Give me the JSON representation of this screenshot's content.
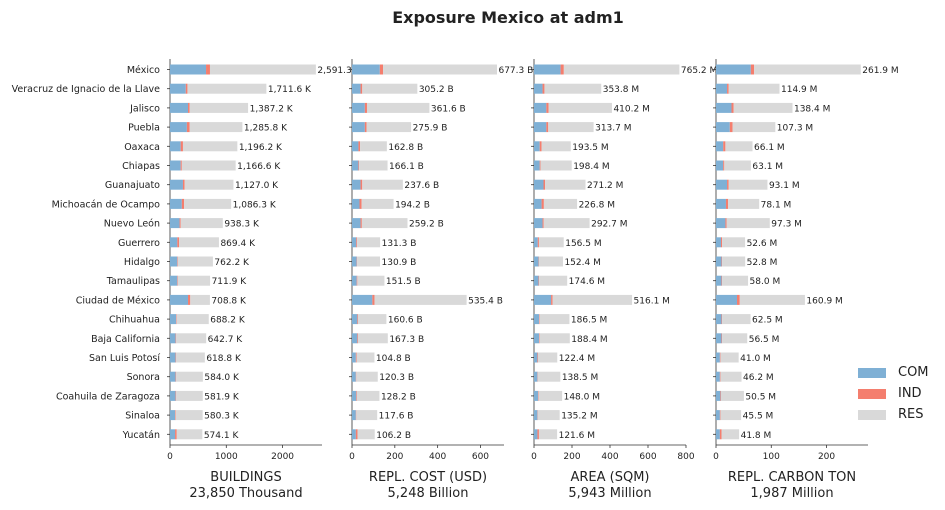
{
  "title": "Exposure Mexico at adm1",
  "colors": {
    "COM": "#7fb0d5",
    "IND": "#f47e6e",
    "RES": "#d9d9d9"
  },
  "legend": [
    {
      "key": "COM",
      "label": "COM"
    },
    {
      "key": "IND",
      "label": "IND"
    },
    {
      "key": "RES",
      "label": "RES"
    }
  ],
  "chart_data": {
    "type": "bar",
    "orientation": "horizontal",
    "stacked": true,
    "categories": [
      "México",
      "Veracruz de Ignacio de la Llave",
      "Jalisco",
      "Puebla",
      "Oaxaca",
      "Chiapas",
      "Guanajuato",
      "Michoacán de Ocampo",
      "Nuevo León",
      "Guerrero",
      "Hidalgo",
      "Tamaulipas",
      "Ciudad de México",
      "Chihuahua",
      "Baja California",
      "San Luis Potosí",
      "Sonora",
      "Coahuila de Zaragoza",
      "Sinaloa",
      "Yucatán"
    ],
    "panels": [
      {
        "xlabel": "BUILDINGS",
        "total_label": "23,850 Thousand",
        "xticks": [
          0,
          1000,
          2000
        ],
        "xlim": [
          0,
          2700
        ],
        "totals": [
          2591.3,
          1711.6,
          1387.2,
          1285.8,
          1196.2,
          1166.6,
          1127.0,
          1086.3,
          938.3,
          869.4,
          762.2,
          711.9,
          708.8,
          688.2,
          642.7,
          618.8,
          584.0,
          581.9,
          580.3,
          574.1
        ],
        "labels": [
          "2,591.3 K",
          "1,711.6 K",
          "1,387.2 K",
          "1,285.8 K",
          "1,196.2 K",
          "1,166.6 K",
          "1,127.0 K",
          "1,086.3 K",
          "938.3 K",
          "869.4 K",
          "762.2 K",
          "711.9 K",
          "708.8 K",
          "688.2 K",
          "642.7 K",
          "618.8 K",
          "584.0 K",
          "581.9 K",
          "580.3 K",
          "574.1 K"
        ],
        "series": [
          {
            "key": "COM",
            "values": [
              640,
              280,
              320,
              300,
              190,
              190,
              230,
              210,
              170,
              130,
              130,
              130,
              320,
              110,
              100,
              100,
              100,
              100,
              90,
              90
            ]
          },
          {
            "key": "IND",
            "values": [
              70,
              30,
              30,
              50,
              40,
              20,
              30,
              40,
              20,
              30,
              10,
              10,
              40,
              10,
              10,
              10,
              10,
              10,
              10,
              30
            ]
          },
          {
            "key": "RES",
            "values": [
              1881.3,
              1401.6,
              1037.2,
              935.8,
              966.2,
              956.6,
              867.0,
              836.3,
              748.3,
              709.4,
              622.2,
              571.9,
              348.8,
              568.2,
              532.7,
              508.8,
              474.0,
              471.9,
              480.3,
              454.1
            ]
          }
        ]
      },
      {
        "xlabel": "REPL. COST (USD)",
        "total_label": "5,248 Billion",
        "xticks": [
          0,
          200,
          400,
          600
        ],
        "xlim": [
          0,
          710
        ],
        "totals": [
          677.3,
          305.2,
          361.6,
          275.9,
          162.8,
          166.1,
          237.6,
          194.2,
          259.2,
          131.3,
          130.9,
          151.5,
          535.4,
          160.6,
          167.3,
          104.8,
          120.3,
          128.2,
          117.6,
          106.2
        ],
        "labels": [
          "677.3 B",
          "305.2 B",
          "361.6 B",
          "275.9 B",
          "162.8 B",
          "166.1 B",
          "237.6 B",
          "194.2 B",
          "259.2 B",
          "131.3 B",
          "130.9 B",
          "151.5 B",
          "535.4 B",
          "160.6 B",
          "167.3 B",
          "104.8 B",
          "120.3 B",
          "128.2 B",
          "117.6 B",
          "106.2 B"
        ],
        "series": [
          {
            "key": "COM",
            "values": [
              130,
              40,
              60,
              60,
              30,
              30,
              40,
              35,
              40,
              20,
              22,
              22,
              95,
              25,
              25,
              18,
              18,
              20,
              18,
              18
            ]
          },
          {
            "key": "IND",
            "values": [
              15,
              8,
              10,
              8,
              8,
              3,
              8,
              10,
              6,
              4,
              2,
              3,
              10,
              3,
              3,
              3,
              2,
              3,
              2,
              8
            ]
          },
          {
            "key": "RES",
            "values": [
              532.3,
              257.2,
              291.6,
              207.9,
              124.8,
              133.1,
              189.6,
              149.2,
              213.2,
              107.3,
              106.9,
              126.5,
              430.4,
              132.6,
              139.3,
              83.8,
              100.3,
              105.2,
              97.6,
              80.2
            ]
          }
        ]
      },
      {
        "xlabel": "AREA (SQM)",
        "total_label": "5,943 Million",
        "xticks": [
          0,
          200,
          400,
          600,
          800
        ],
        "xlim": [
          0,
          800
        ],
        "totals": [
          765.2,
          353.8,
          410.2,
          313.7,
          193.5,
          198.4,
          271.2,
          226.8,
          292.7,
          156.5,
          152.4,
          174.6,
          516.1,
          186.5,
          188.4,
          122.4,
          138.5,
          148.0,
          135.2,
          121.6
        ],
        "labels": [
          "765.2 M",
          "353.8 M",
          "410.2 M",
          "313.7 M",
          "193.5 M",
          "198.4 M",
          "271.2 M",
          "226.8 M",
          "292.7 M",
          "156.5 M",
          "152.4 M",
          "174.6 M",
          "516.1 M",
          "186.5 M",
          "188.4 M",
          "122.4 M",
          "138.5 M",
          "148.0 M",
          "135.2 M",
          "121.6 M"
        ],
        "series": [
          {
            "key": "COM",
            "values": [
              140,
              45,
              65,
              65,
              30,
              30,
              50,
              40,
              45,
              20,
              24,
              24,
              90,
              27,
              27,
              18,
              18,
              22,
              18,
              18
            ]
          },
          {
            "key": "IND",
            "values": [
              17,
              10,
              12,
              10,
              10,
              4,
              8,
              12,
              6,
              6,
              2,
              3,
              8,
              3,
              3,
              3,
              2,
              3,
              2,
              8
            ]
          },
          {
            "key": "RES",
            "values": [
              608.2,
              298.8,
              333.2,
              238.7,
              153.5,
              164.4,
              213.2,
              174.8,
              241.7,
              130.5,
              126.4,
              147.6,
              418.1,
              156.5,
              158.4,
              101.4,
              118.5,
              123.0,
              115.2,
              95.6
            ]
          }
        ]
      },
      {
        "xlabel": "REPL. CARBON TON",
        "total_label": "1,987 Million",
        "xticks": [
          0,
          100,
          200
        ],
        "xlim": [
          0,
          275
        ],
        "totals": [
          261.9,
          114.9,
          138.4,
          107.3,
          66.1,
          63.1,
          93.1,
          78.1,
          97.3,
          52.6,
          52.8,
          58.0,
          160.9,
          62.5,
          56.5,
          41.0,
          46.2,
          50.5,
          45.5,
          41.8
        ],
        "labels": [
          "261.9 M",
          "114.9 M",
          "138.4 M",
          "107.3 M",
          "66.1 M",
          "63.1 M",
          "93.1 M",
          "78.1 M",
          "97.3 M",
          "52.6 M",
          "52.8 M",
          "58.0 M",
          "160.9 M",
          "62.5 M",
          "56.5 M",
          "41.0 M",
          "46.2 M",
          "50.5 M",
          "45.5 M",
          "41.8 M"
        ],
        "series": [
          {
            "key": "COM",
            "values": [
              63,
              20,
              28,
              25,
              13,
              13,
              20,
              18,
              17,
              9,
              10,
              10,
              38,
              10,
              10,
              7,
              7,
              8,
              7,
              7
            ]
          },
          {
            "key": "IND",
            "values": [
              6,
              3,
              4,
              5,
              4,
              2,
              3,
              4,
              2,
              2,
              1,
              1,
              5,
              1,
              1,
              1,
              1,
              1,
              1,
              3
            ]
          },
          {
            "key": "RES",
            "values": [
              192.9,
              91.9,
              106.4,
              77.3,
              49.1,
              48.1,
              70.1,
              56.1,
              78.3,
              41.6,
              41.8,
              47.0,
              117.9,
              51.5,
              45.5,
              33.0,
              38.2,
              41.5,
              37.5,
              31.8
            ]
          }
        ]
      }
    ]
  }
}
